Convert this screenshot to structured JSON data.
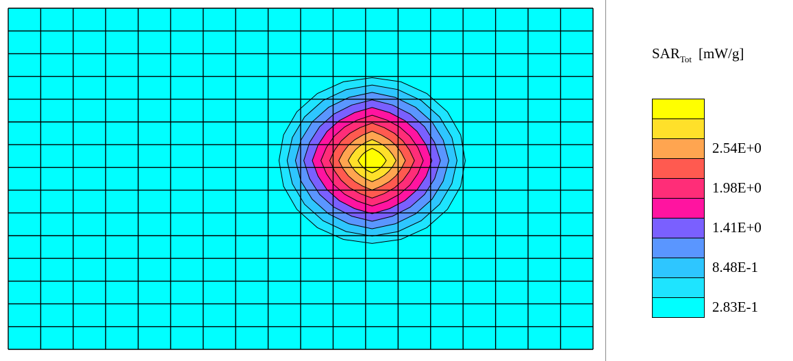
{
  "chart_data": {
    "type": "heatmap",
    "subtype": "contour",
    "grid": true,
    "grid_size": {
      "cols": 18,
      "rows": 15
    },
    "peak": {
      "col": 11.2,
      "row": 6.7
    },
    "levels_from_peak": 10,
    "legend": {
      "title_main": "SAR",
      "title_sub": "Tot",
      "unit": "[mW/g]",
      "placement": "right",
      "bins_top_to_bottom": [
        "#FFFF00",
        "#FFE02A",
        "#FFA550",
        "#FF5A50",
        "#FF2D78",
        "#FF14A0",
        "#7A60FF",
        "#5A96FF",
        "#2EC6FF",
        "#1EE4FF",
        "#00FFFF"
      ],
      "tick_labels": [
        {
          "text": "2.54E+0",
          "bin_index": 2
        },
        {
          "text": "1.98E+0",
          "bin_index": 4
        },
        {
          "text": "1.41E+0",
          "bin_index": 6
        },
        {
          "text": "8.48E-1",
          "bin_index": 8
        },
        {
          "text": "2.83E-1",
          "bin_index": 10
        }
      ]
    },
    "background_color": "#00FFFF"
  }
}
